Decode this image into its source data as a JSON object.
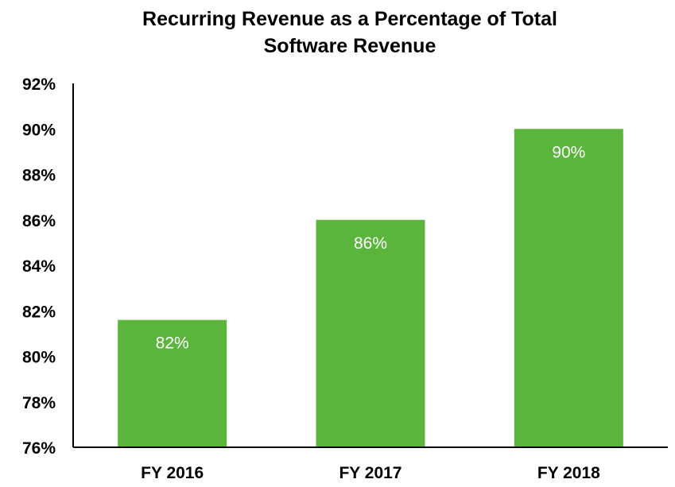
{
  "chart_data": {
    "type": "bar",
    "title_lines": [
      "Recurring Revenue as a Percentage of Total",
      "Software Revenue"
    ],
    "categories": [
      "FY 2016",
      "FY 2017",
      "FY 2018"
    ],
    "values": [
      81.6,
      86,
      90
    ],
    "data_labels": [
      "82%",
      "86%",
      "90%"
    ],
    "y_ticks": [
      "76%",
      "78%",
      "80%",
      "82%",
      "84%",
      "86%",
      "88%",
      "90%",
      "92%"
    ],
    "ylim": [
      76,
      92
    ],
    "y_tick_step": 2,
    "xlabel": "",
    "ylabel": "",
    "grid": false,
    "legend": "none",
    "bar_color": "#5bb53c",
    "data_label_color": "#ffffff"
  }
}
